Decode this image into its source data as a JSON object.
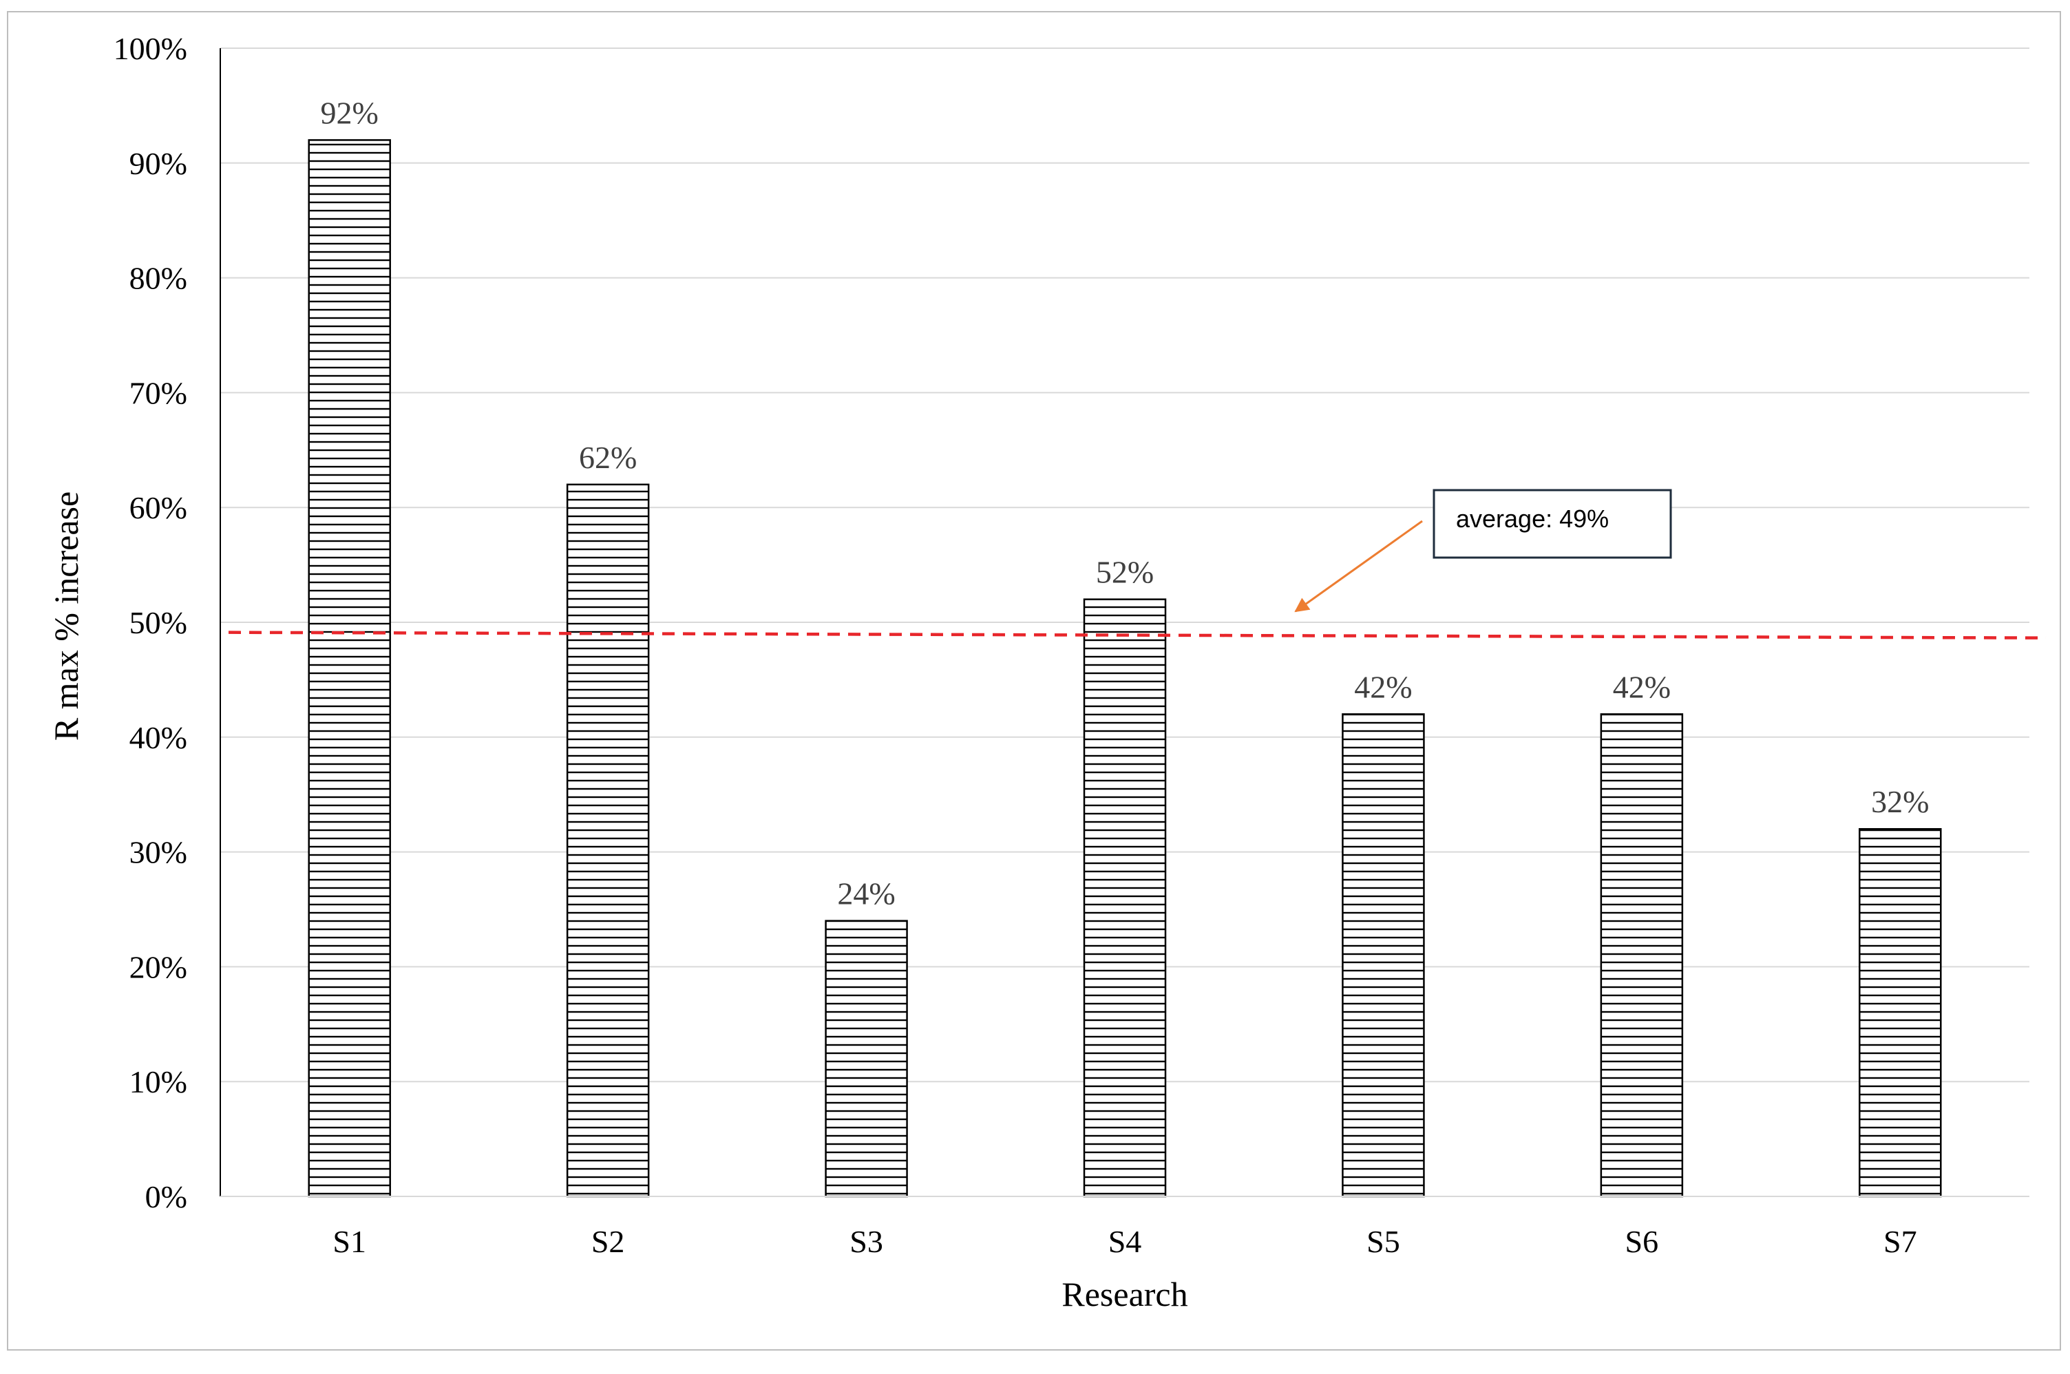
{
  "chart_data": {
    "type": "bar",
    "categories": [
      "S1",
      "S2",
      "S3",
      "S4",
      "S5",
      "S6",
      "S7"
    ],
    "values": [
      92,
      62,
      24,
      52,
      42,
      42,
      32
    ],
    "data_labels": [
      "92%",
      "62%",
      "24%",
      "52%",
      "42%",
      "42%",
      "32%"
    ],
    "xlabel": "Research",
    "ylabel": "R max % increase",
    "ylim": [
      0,
      100
    ],
    "yticks": [
      0,
      10,
      20,
      30,
      40,
      50,
      60,
      70,
      80,
      90,
      100
    ],
    "ytick_labels": [
      "0%",
      "10%",
      "20%",
      "30%",
      "40%",
      "50%",
      "60%",
      "70%",
      "80%",
      "90%",
      "100%"
    ],
    "grid": true,
    "bar_pattern": "horizontal-hatch",
    "average_line": {
      "value": 49,
      "style": "dashed",
      "color": "#e8262b"
    },
    "annotation": {
      "text": "average: 49%",
      "arrow_color": "#ed7d31",
      "box_border_color": "#1f2d3d"
    }
  }
}
